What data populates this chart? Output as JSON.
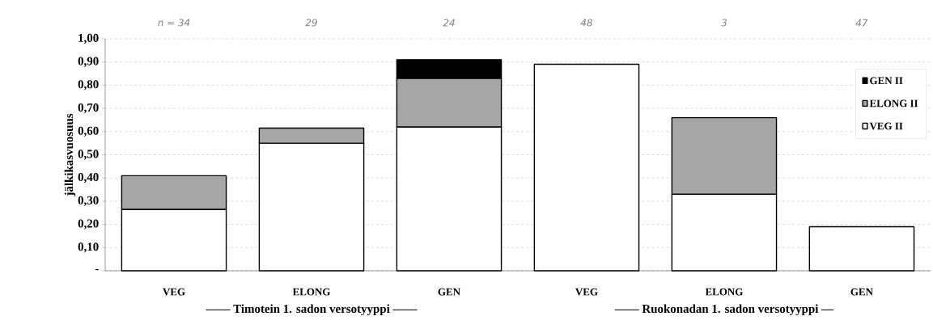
{
  "chart_data": {
    "type": "bar",
    "stacked": true,
    "ylabel": "jälkikasvuosuus",
    "categories": [
      "VEG",
      "ELONG",
      "GEN",
      "VEG",
      "ELONG",
      "GEN"
    ],
    "series": [
      {
        "name": "VEG II",
        "color": "#ffffff",
        "values": [
          0.265,
          0.55,
          0.62,
          0.89,
          0.33,
          0.19
        ]
      },
      {
        "name": "ELONG II",
        "color": "#a6a6a6",
        "values": [
          0.145,
          0.065,
          0.21,
          null,
          0.33,
          null
        ]
      },
      {
        "name": "GEN II",
        "color": "#000000",
        "values": [
          null,
          null,
          0.08,
          null,
          null,
          null
        ]
      }
    ],
    "ylim": [
      0,
      1.0
    ],
    "yticks": [
      {
        "value": 0,
        "label": "-"
      },
      {
        "value": 0.1,
        "label": "0,10"
      },
      {
        "value": 0.2,
        "label": "0,20"
      },
      {
        "value": 0.3,
        "label": "0,30"
      },
      {
        "value": 0.4,
        "label": "0,40"
      },
      {
        "value": 0.5,
        "label": "0,50"
      },
      {
        "value": 0.6,
        "label": "0,60"
      },
      {
        "value": 0.7,
        "label": "0,70"
      },
      {
        "value": 0.8,
        "label": "0,80"
      },
      {
        "value": 0.9,
        "label": "0,90"
      },
      {
        "value": 1.0,
        "label": "1,00"
      }
    ],
    "grid": "y",
    "legend": "top right",
    "annotations": [
      "n = 34",
      "29",
      "24",
      "48",
      "3",
      "47",
      "—— Timotein 1. sadon versotyyppi ——",
      "—— Ruokonadan 1. sadon versotyyppi —"
    ]
  }
}
